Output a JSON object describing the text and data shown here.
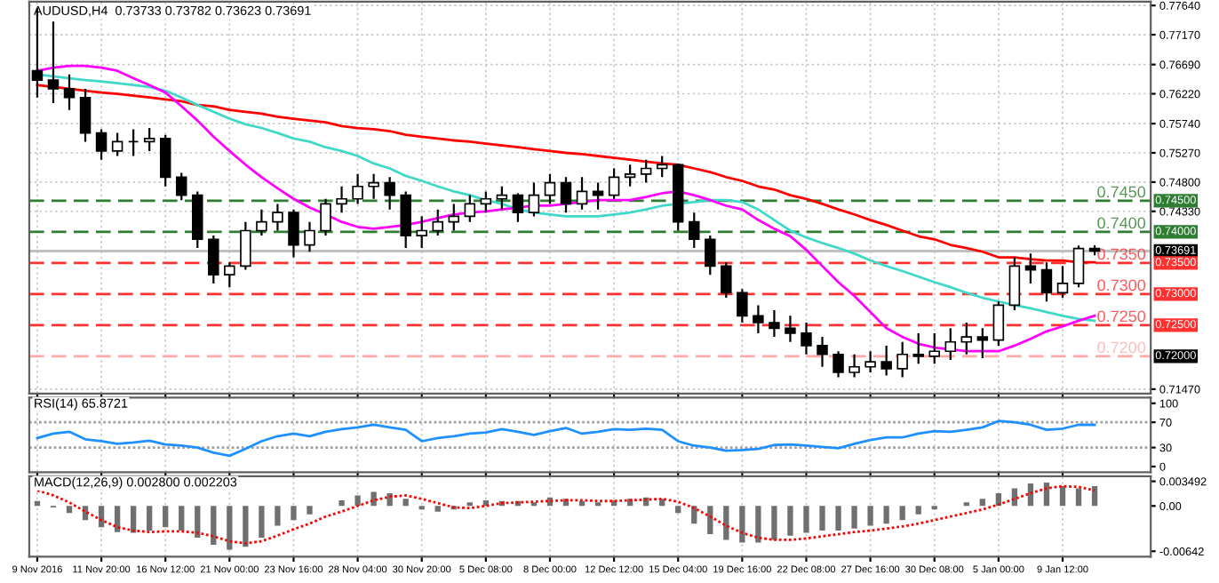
{
  "chart_data": [
    {
      "type": "candlestick",
      "title": "AUDUSD,H4  0.73733 0.73782 0.73623 0.73691",
      "color": "#000000",
      "categories": [
        null,
        null,
        null,
        null,
        null,
        null,
        null,
        null,
        null,
        null,
        null,
        null,
        null,
        null,
        null,
        null,
        null,
        null,
        null,
        null,
        null,
        null,
        null,
        null,
        null,
        null,
        null,
        null,
        null,
        null,
        null,
        null,
        null,
        null,
        null,
        null,
        null,
        null,
        null,
        null,
        null,
        null,
        null,
        null,
        null,
        null,
        null,
        null,
        null,
        null,
        null,
        null,
        null,
        null,
        null,
        null,
        null,
        null,
        null,
        null,
        null,
        null,
        null,
        null,
        null,
        null,
        null
      ],
      "ohlc": [
        [
          0.7659,
          0.776,
          0.7616,
          0.7644
        ],
        [
          0.7644,
          0.7738,
          0.7607,
          0.763
        ],
        [
          0.763,
          0.7653,
          0.7596,
          0.7616
        ],
        [
          0.7616,
          0.763,
          0.7545,
          0.7559
        ],
        [
          0.7559,
          0.7565,
          0.7516,
          0.753
        ],
        [
          0.753,
          0.7559,
          0.7522,
          0.7545
        ],
        [
          0.7545,
          0.7565,
          0.7522,
          0.7545
        ],
        [
          0.7545,
          0.7567,
          0.753,
          0.755
        ],
        [
          0.755,
          0.7556,
          0.7473,
          0.7488
        ],
        [
          0.7488,
          0.7495,
          0.7451,
          0.7459
        ],
        [
          0.7459,
          0.7465,
          0.7374,
          0.7388
        ],
        [
          0.7388,
          0.7394,
          0.7317,
          0.7331
        ],
        [
          0.7331,
          0.7351,
          0.7311,
          0.7345
        ],
        [
          0.7345,
          0.7416,
          0.7339,
          0.7402
        ],
        [
          0.7402,
          0.7436,
          0.7394,
          0.7416
        ],
        [
          0.7416,
          0.7445,
          0.7402,
          0.7431
        ],
        [
          0.7431,
          0.7436,
          0.7359,
          0.7379
        ],
        [
          0.7379,
          0.7416,
          0.7368,
          0.7402
        ],
        [
          0.7402,
          0.7453,
          0.7394,
          0.7445
        ],
        [
          0.7445,
          0.7473,
          0.7431,
          0.7453
        ],
        [
          0.7453,
          0.7493,
          0.7445,
          0.7473
        ],
        [
          0.7473,
          0.7493,
          0.7453,
          0.7479
        ],
        [
          0.7479,
          0.7488,
          0.7436,
          0.7459
        ],
        [
          0.7459,
          0.7465,
          0.7374,
          0.7394
        ],
        [
          0.7394,
          0.7425,
          0.7374,
          0.7402
        ],
        [
          0.7402,
          0.7436,
          0.7394,
          0.7416
        ],
        [
          0.7416,
          0.7445,
          0.7402,
          0.7425
        ],
        [
          0.7425,
          0.7459,
          0.7416,
          0.7445
        ],
        [
          0.7445,
          0.7465,
          0.7431,
          0.7453
        ],
        [
          0.7453,
          0.7473,
          0.7436,
          0.7459
        ],
        [
          0.7459,
          0.7462,
          0.7416,
          0.7431
        ],
        [
          0.7431,
          0.7479,
          0.7425,
          0.7459
        ],
        [
          0.7459,
          0.7493,
          0.7445,
          0.7479
        ],
        [
          0.7479,
          0.7488,
          0.7431,
          0.7445
        ],
        [
          0.7445,
          0.7488,
          0.7436,
          0.7465
        ],
        [
          0.7465,
          0.7479,
          0.7436,
          0.7459
        ],
        [
          0.7459,
          0.7502,
          0.7453,
          0.7488
        ],
        [
          0.7488,
          0.7508,
          0.7473,
          0.7493
        ],
        [
          0.7493,
          0.7516,
          0.7479,
          0.7502
        ],
        [
          0.7502,
          0.7522,
          0.7488,
          0.7508
        ],
        [
          0.7508,
          0.751,
          0.7402,
          0.7416
        ],
        [
          0.7416,
          0.7431,
          0.7374,
          0.7388
        ],
        [
          0.7388,
          0.7394,
          0.7331,
          0.7345
        ],
        [
          0.7345,
          0.7351,
          0.7294,
          0.7302
        ],
        [
          0.7302,
          0.7308,
          0.7254,
          0.7265
        ],
        [
          0.7265,
          0.7282,
          0.7237,
          0.7254
        ],
        [
          0.7254,
          0.7274,
          0.7231,
          0.7245
        ],
        [
          0.7245,
          0.7265,
          0.7223,
          0.7237
        ],
        [
          0.7237,
          0.7254,
          0.7203,
          0.7217
        ],
        [
          0.7217,
          0.7231,
          0.7183,
          0.7203
        ],
        [
          0.7203,
          0.7208,
          0.7166,
          0.7174
        ],
        [
          0.7174,
          0.7203,
          0.7166,
          0.7183
        ],
        [
          0.7183,
          0.7208,
          0.7174,
          0.7191
        ],
        [
          0.7191,
          0.7217,
          0.7169,
          0.718
        ],
        [
          0.718,
          0.7223,
          0.7166,
          0.7203
        ],
        [
          0.7203,
          0.7237,
          0.7188,
          0.72
        ],
        [
          0.72,
          0.7237,
          0.7188,
          0.7208
        ],
        [
          0.7208,
          0.7245,
          0.7194,
          0.7223
        ],
        [
          0.7223,
          0.7254,
          0.7203,
          0.7231
        ],
        [
          0.7231,
          0.7245,
          0.7197,
          0.7226
        ],
        [
          0.7226,
          0.7288,
          0.7217,
          0.7282
        ],
        [
          0.7282,
          0.7359,
          0.7274,
          0.7345
        ],
        [
          0.7345,
          0.7365,
          0.7317,
          0.7339
        ],
        [
          0.7339,
          0.7351,
          0.7288,
          0.7302
        ],
        [
          0.7302,
          0.7345,
          0.7294,
          0.7317
        ],
        [
          0.7317,
          0.7378,
          0.7311,
          0.73733
        ],
        [
          0.73733,
          0.73782,
          0.73623,
          0.73691
        ]
      ],
      "series": [
        {
          "type": "line",
          "color": "#ff0000",
          "values": [
            0.7636,
            0.7633,
            0.763,
            0.7627,
            0.7624,
            0.7622,
            0.7619,
            0.7616,
            0.7613,
            0.761,
            0.7604,
            0.7602,
            0.7596,
            0.7593,
            0.759,
            0.7585,
            0.7582,
            0.7579,
            0.7576,
            0.757,
            0.7567,
            0.7565,
            0.7562,
            0.7556,
            0.7553,
            0.755,
            0.7547,
            0.7545,
            0.7542,
            0.7539,
            0.7536,
            0.7533,
            0.753,
            0.7527,
            0.7525,
            0.7522,
            0.7519,
            0.7516,
            0.7513,
            0.751,
            0.7508,
            0.7502,
            0.7496,
            0.7488,
            0.7482,
            0.7473,
            0.7468,
            0.7459,
            0.7453,
            0.7445,
            0.7436,
            0.7428,
            0.7419,
            0.7411,
            0.7402,
            0.7393,
            0.7388,
            0.7379,
            0.7374,
            0.7368,
            0.7359,
            0.7359,
            0.7356,
            0.7354,
            0.7354,
            0.7351,
            0.7351
          ]
        },
        {
          "type": "line",
          "color": "#40d8c8",
          "values": [
            0.7653,
            0.765,
            0.7647,
            0.7644,
            0.7642,
            0.7639,
            0.7636,
            0.7633,
            0.7627,
            0.7616,
            0.7604,
            0.7593,
            0.7582,
            0.7573,
            0.7567,
            0.7559,
            0.755,
            0.7545,
            0.7536,
            0.753,
            0.7522,
            0.751,
            0.7502,
            0.749,
            0.7482,
            0.7473,
            0.7465,
            0.7459,
            0.7451,
            0.7445,
            0.7436,
            0.7431,
            0.7428,
            0.7425,
            0.7425,
            0.7425,
            0.7428,
            0.7431,
            0.7436,
            0.7442,
            0.7445,
            0.7448,
            0.7451,
            0.7451,
            0.7448,
            0.7436,
            0.7419,
            0.7402,
            0.7391,
            0.7382,
            0.7374,
            0.7365,
            0.7354,
            0.7345,
            0.7337,
            0.7328,
            0.7319,
            0.7311,
            0.7302,
            0.7294,
            0.7288,
            0.7282,
            0.7277,
            0.7271,
            0.7265,
            0.726,
            0.7257
          ]
        },
        {
          "type": "line",
          "color": "#ff00ff",
          "values": [
            0.7659,
            0.7664,
            0.7667,
            0.7667,
            0.7664,
            0.7659,
            0.7647,
            0.7636,
            0.7624,
            0.7602,
            0.7579,
            0.7553,
            0.753,
            0.7508,
            0.7488,
            0.747,
            0.7453,
            0.7439,
            0.7428,
            0.7416,
            0.7408,
            0.7405,
            0.7408,
            0.7411,
            0.7416,
            0.7422,
            0.7428,
            0.7431,
            0.7433,
            0.7436,
            0.7439,
            0.7442,
            0.7442,
            0.7445,
            0.7448,
            0.7451,
            0.7451,
            0.7451,
            0.7456,
            0.7462,
            0.7465,
            0.7459,
            0.7451,
            0.7442,
            0.7436,
            0.7419,
            0.7405,
            0.7393,
            0.7371,
            0.7345,
            0.7319,
            0.7297,
            0.7271,
            0.7245,
            0.7231,
            0.722,
            0.7214,
            0.7211,
            0.7208,
            0.7208,
            0.7208,
            0.7217,
            0.7228,
            0.724,
            0.7248,
            0.7257,
            0.7265
          ]
        }
      ],
      "ylim": [
        0.714,
        0.777
      ],
      "yticks": [
        {
          "value": 0.7764,
          "label": "0.77640"
        },
        {
          "value": 0.7717,
          "label": "0.77170"
        },
        {
          "value": 0.7669,
          "label": "0.76690"
        },
        {
          "value": 0.7622,
          "label": "0.76220"
        },
        {
          "value": 0.7574,
          "label": "0.75740"
        },
        {
          "value": 0.7527,
          "label": "0.75270"
        },
        {
          "value": 0.748,
          "label": "0.74800"
        },
        {
          "value": 0.7433,
          "label": "0.74330"
        },
        {
          "value": 0.7147,
          "label": "0.71470"
        }
      ],
      "ref_lines": [
        {
          "axis": "y",
          "value": 0.745,
          "label": "0.74500",
          "color": "#2e7d32",
          "line_style": "dashed"
        },
        {
          "axis": "y",
          "value": 0.74,
          "label": "0.74000",
          "color": "#2e7d32",
          "line_style": "dashed"
        },
        {
          "axis": "y",
          "value": 0.73691,
          "label": "0.73691",
          "color": "#c0c0c0",
          "line_style": "solid"
        },
        {
          "axis": "y",
          "value": 0.735,
          "label": "0.73500",
          "color": "#ff3030",
          "line_style": "dashed"
        },
        {
          "axis": "y",
          "value": 0.73,
          "label": "0.73000",
          "color": "#ff3030",
          "line_style": "dashed"
        },
        {
          "axis": "y",
          "value": 0.725,
          "label": "0.72500",
          "color": "#ff3030",
          "line_style": "dashed"
        },
        {
          "axis": "y",
          "value": 0.72,
          "label": "0.72000",
          "color": "#ffaaaa",
          "line_style": "dashed"
        }
      ],
      "annotations": [
        {
          "text": "0.7450",
          "y": 0.745
        },
        {
          "text": "0.7400",
          "y": 0.74
        },
        {
          "text": "0.7350",
          "y": 0.735
        },
        {
          "text": "0.7300",
          "y": 0.73
        },
        {
          "text": "0.7250",
          "y": 0.725
        },
        {
          "text": "0.7200",
          "y": 0.72
        }
      ],
      "grid": true,
      "tick_labels": "y"
    },
    {
      "type": "line",
      "title": "RSI(14) 65.8721",
      "categories": [
        null,
        null,
        null,
        null,
        null,
        null,
        null,
        null,
        null,
        null,
        null,
        null,
        null,
        null,
        null,
        null,
        null,
        null,
        null,
        null,
        null,
        null,
        null,
        null,
        null,
        null,
        null,
        null,
        null,
        null,
        null,
        null,
        null,
        null,
        null,
        null,
        null,
        null,
        null,
        null,
        null,
        null,
        null,
        null,
        null,
        null,
        null,
        null,
        null,
        null,
        null,
        null,
        null,
        null,
        null,
        null,
        null,
        null,
        null,
        null,
        null,
        null,
        null,
        null,
        null,
        null,
        null
      ],
      "series": [
        {
          "color": "#1e90ff",
          "values": [
            45,
            52,
            55,
            43,
            40,
            36,
            38,
            41,
            35,
            33,
            30,
            22,
            17,
            28,
            40,
            48,
            52,
            48,
            55,
            59,
            62,
            66,
            62,
            58,
            40,
            45,
            48,
            52,
            54,
            59,
            55,
            50,
            56,
            61,
            52,
            55,
            59,
            58,
            60,
            58,
            40,
            33,
            30,
            25,
            26,
            28,
            34,
            35,
            33,
            31,
            29,
            36,
            42,
            46,
            46,
            52,
            56,
            55,
            58,
            62,
            72,
            70,
            66,
            58,
            60,
            66,
            66
          ]
        }
      ],
      "ylim": [
        -9,
        109
      ],
      "yticks": [
        0,
        30,
        70,
        100
      ],
      "ref_lines": [
        {
          "axis": "y",
          "value": 30,
          "color": "#a0a0a0",
          "line_style": "dotted"
        },
        {
          "axis": "y",
          "value": 70,
          "color": "#a0a0a0",
          "line_style": "dotted"
        }
      ],
      "grid": "x",
      "tick_labels": "y"
    },
    {
      "type": "bar",
      "title": "MACD(12,26,9) 0.002800 0.002203",
      "categories": [
        "9 Nov 2016",
        null,
        null,
        null,
        "11 Nov 20:00",
        null,
        null,
        null,
        "16 Nov 12:00",
        null,
        null,
        null,
        "21 Nov 00:00",
        null,
        null,
        null,
        "23 Nov 16:00",
        null,
        null,
        null,
        "28 Nov 04:00",
        null,
        null,
        null,
        "30 Nov 20:00",
        null,
        null,
        null,
        "5 Dec 08:00",
        null,
        null,
        null,
        "8 Dec 00:00",
        null,
        null,
        null,
        "12 Dec 12:00",
        null,
        null,
        null,
        "15 Dec 04:00",
        null,
        null,
        null,
        "19 Dec 16:00",
        null,
        null,
        null,
        "22 Dec 08:00",
        null,
        null,
        null,
        "27 Dec 16:00",
        null,
        null,
        null,
        "30 Dec 08:00",
        null,
        null,
        null,
        "5 Jan 00:00",
        null,
        null,
        null,
        "9 Jan 12:00",
        null,
        null
      ],
      "series": [
        {
          "type": "bar",
          "color": "#707070",
          "values": [
            0.0007,
            -0.0002,
            -0.001,
            -0.002,
            -0.003,
            -0.0037,
            -0.0038,
            -0.0035,
            -0.003,
            -0.0035,
            -0.0045,
            -0.0055,
            -0.0062,
            -0.0058,
            -0.0045,
            -0.0028,
            -0.002,
            -0.0012,
            0.0,
            0.0008,
            0.0015,
            0.002,
            0.0018,
            0.001,
            -0.0005,
            -0.0008,
            -0.0005,
            0.0005,
            0.0008,
            0.0007,
            0.0007,
            0.0005,
            0.0012,
            0.001,
            0.0007,
            0.0005,
            0.0008,
            0.001,
            0.0012,
            0.001,
            -0.001,
            -0.0025,
            -0.004,
            -0.0048,
            -0.0052,
            -0.0052,
            -0.0048,
            -0.0042,
            -0.0038,
            -0.0035,
            -0.0035,
            -0.0032,
            -0.0028,
            -0.0025,
            -0.002,
            -0.0012,
            -0.0005,
            0.0,
            0.0005,
            0.001,
            0.0018,
            0.0025,
            0.0032,
            0.0033,
            0.0028,
            0.0025,
            0.0028
          ]
        },
        {
          "type": "line",
          "color": "#ff0000",
          "line_style": "dotted",
          "values": [
            0.0022,
            0.0015,
            0.0005,
            -0.0008,
            -0.002,
            -0.003,
            -0.0035,
            -0.0037,
            -0.0036,
            -0.0036,
            -0.0038,
            -0.0043,
            -0.005,
            -0.0053,
            -0.005,
            -0.0042,
            -0.0033,
            -0.0025,
            -0.0015,
            -0.0008,
            0.0,
            0.0008,
            0.0013,
            0.0015,
            0.001,
            0.0004,
            -0.0002,
            -0.0003,
            0.0,
            0.0004,
            0.0005,
            0.0006,
            0.0007,
            0.0008,
            0.0008,
            0.0007,
            0.0007,
            0.0008,
            0.0009,
            0.001,
            0.0006,
            -0.0003,
            -0.0015,
            -0.0028,
            -0.0038,
            -0.0045,
            -0.0048,
            -0.0048,
            -0.0046,
            -0.0043,
            -0.004,
            -0.0037,
            -0.0035,
            -0.0032,
            -0.0029,
            -0.0025,
            -0.002,
            -0.0015,
            -0.001,
            -0.0005,
            0.0002,
            0.001,
            0.0018,
            0.0025,
            0.0028,
            0.0027,
            0.0022
          ]
        }
      ],
      "ylim": [
        -0.0072,
        0.0042
      ],
      "yticks": [
        0.003492,
        {
          "value": 0,
          "label": "0.00"
        },
        -0.00642
      ],
      "grid": "x"
    }
  ]
}
